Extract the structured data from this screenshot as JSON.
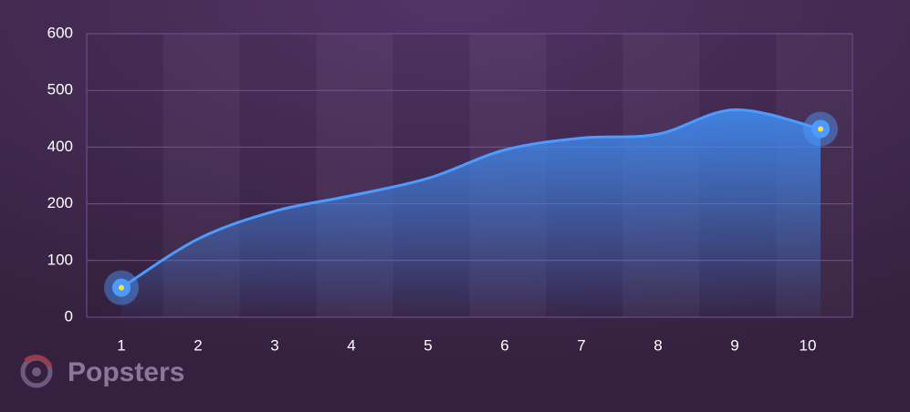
{
  "chart_data": {
    "type": "area",
    "categories": [
      "1",
      "2",
      "3",
      "4",
      "5",
      "6",
      "7",
      "8",
      "9",
      "10"
    ],
    "series": [
      {
        "color": "#4d9bff",
        "values": [
          52,
          138,
          187,
          229,
          290,
          390,
          416,
          423,
          466,
          432
        ]
      }
    ],
    "ylim": [
      0,
      600
    ],
    "yticks": [
      0,
      100,
      200,
      400,
      500,
      600
    ],
    "grid": true
  },
  "watermark": "Popsters"
}
